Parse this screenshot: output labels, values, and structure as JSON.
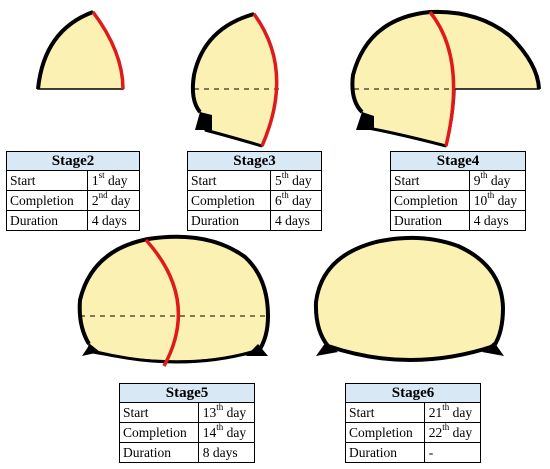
{
  "stages": [
    {
      "id": "stage2",
      "title": "Stage2",
      "rows": [
        {
          "label": "Start",
          "num": "1",
          "suffix": "st",
          "unit": " day"
        },
        {
          "label": "Completion",
          "num": "2",
          "suffix": "nd",
          "unit": " day"
        },
        {
          "label": "Duration",
          "num": "4 days",
          "suffix": "",
          "unit": ""
        }
      ]
    },
    {
      "id": "stage3",
      "title": "Stage3",
      "rows": [
        {
          "label": "Start",
          "num": "5",
          "suffix": "th",
          "unit": " day"
        },
        {
          "label": "Completion",
          "num": "6",
          "suffix": "th",
          "unit": " day"
        },
        {
          "label": "Duration",
          "num": "4 days",
          "suffix": "",
          "unit": ""
        }
      ]
    },
    {
      "id": "stage4",
      "title": "Stage4",
      "rows": [
        {
          "label": "Start",
          "num": "9",
          "suffix": "th",
          "unit": " day"
        },
        {
          "label": "Completion",
          "num": "10",
          "suffix": "th",
          "unit": " day"
        },
        {
          "label": "Duration",
          "num": "4 days",
          "suffix": "",
          "unit": ""
        }
      ]
    },
    {
      "id": "stage5",
      "title": "Stage5",
      "rows": [
        {
          "label": "Start",
          "num": "13",
          "suffix": "th",
          "unit": " day"
        },
        {
          "label": "Completion",
          "num": "14",
          "suffix": "th",
          "unit": " day"
        },
        {
          "label": "Duration",
          "num": "8 days",
          "suffix": "",
          "unit": ""
        }
      ]
    },
    {
      "id": "stage6",
      "title": "Stage6",
      "rows": [
        {
          "label": "Start",
          "num": "21",
          "suffix": "th",
          "unit": " day"
        },
        {
          "label": "Completion",
          "num": "22",
          "suffix": "th",
          "unit": " day"
        },
        {
          "label": "Duration",
          "num": "-",
          "suffix": "",
          "unit": ""
        }
      ]
    }
  ],
  "colors": {
    "section_fill": "#fbf1b3",
    "outline": "#000000",
    "excavation_line": "#e0191b",
    "table_header": "#d9e8f5"
  }
}
